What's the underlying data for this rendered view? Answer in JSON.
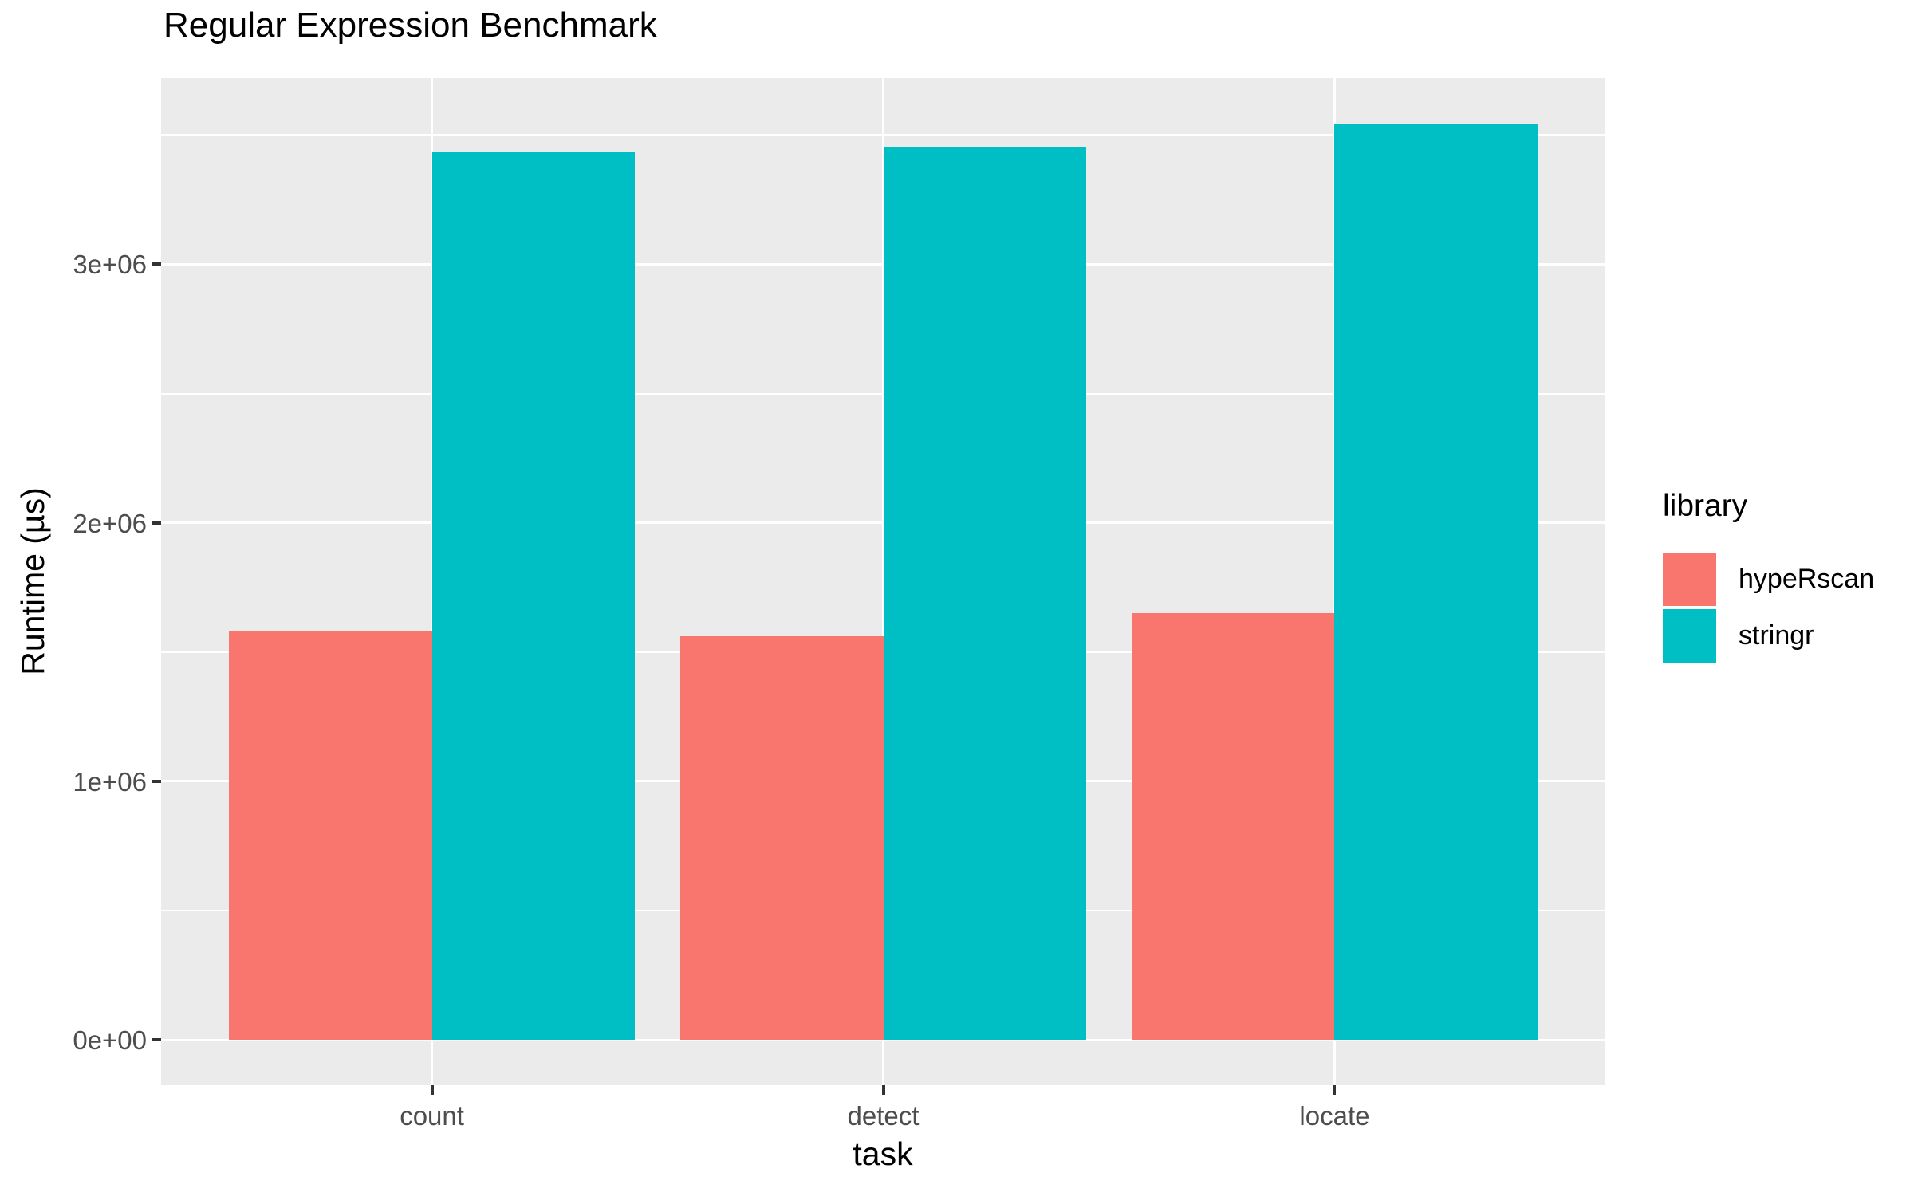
{
  "chart_data": {
    "type": "bar",
    "title": "Regular Expression Benchmark",
    "xlabel": "task",
    "ylabel": "Runtime (µs)",
    "categories": [
      "count",
      "detect",
      "locate"
    ],
    "series": [
      {
        "name": "hypeRscan",
        "color": "#F8766D",
        "values": [
          1580000,
          1560000,
          1650000
        ]
      },
      {
        "name": "stringr",
        "color": "#00BFC4",
        "values": [
          3432000,
          3455000,
          3543000
        ]
      }
    ],
    "y_ticks": [
      {
        "value": 0,
        "label": "0e+00"
      },
      {
        "value": 1000000,
        "label": "1e+06"
      },
      {
        "value": 2000000,
        "label": "2e+06"
      },
      {
        "value": 3000000,
        "label": "3e+06"
      }
    ],
    "y_minor_ticks": [
      500000,
      1500000,
      2500000,
      3500000
    ],
    "ylim": [
      -177000,
      3720000
    ],
    "grid": true,
    "legend_position": "right",
    "panel_background": "#EBEBEB",
    "gridline_color": "#FFFFFF",
    "axis_text_color": "#4D4D4D",
    "bar_group_ratio": 0.9
  },
  "legend": {
    "title": "library",
    "entries": [
      {
        "label": "hypeRscan",
        "color": "#F8766D"
      },
      {
        "label": "stringr",
        "color": "#00BFC4"
      }
    ]
  }
}
